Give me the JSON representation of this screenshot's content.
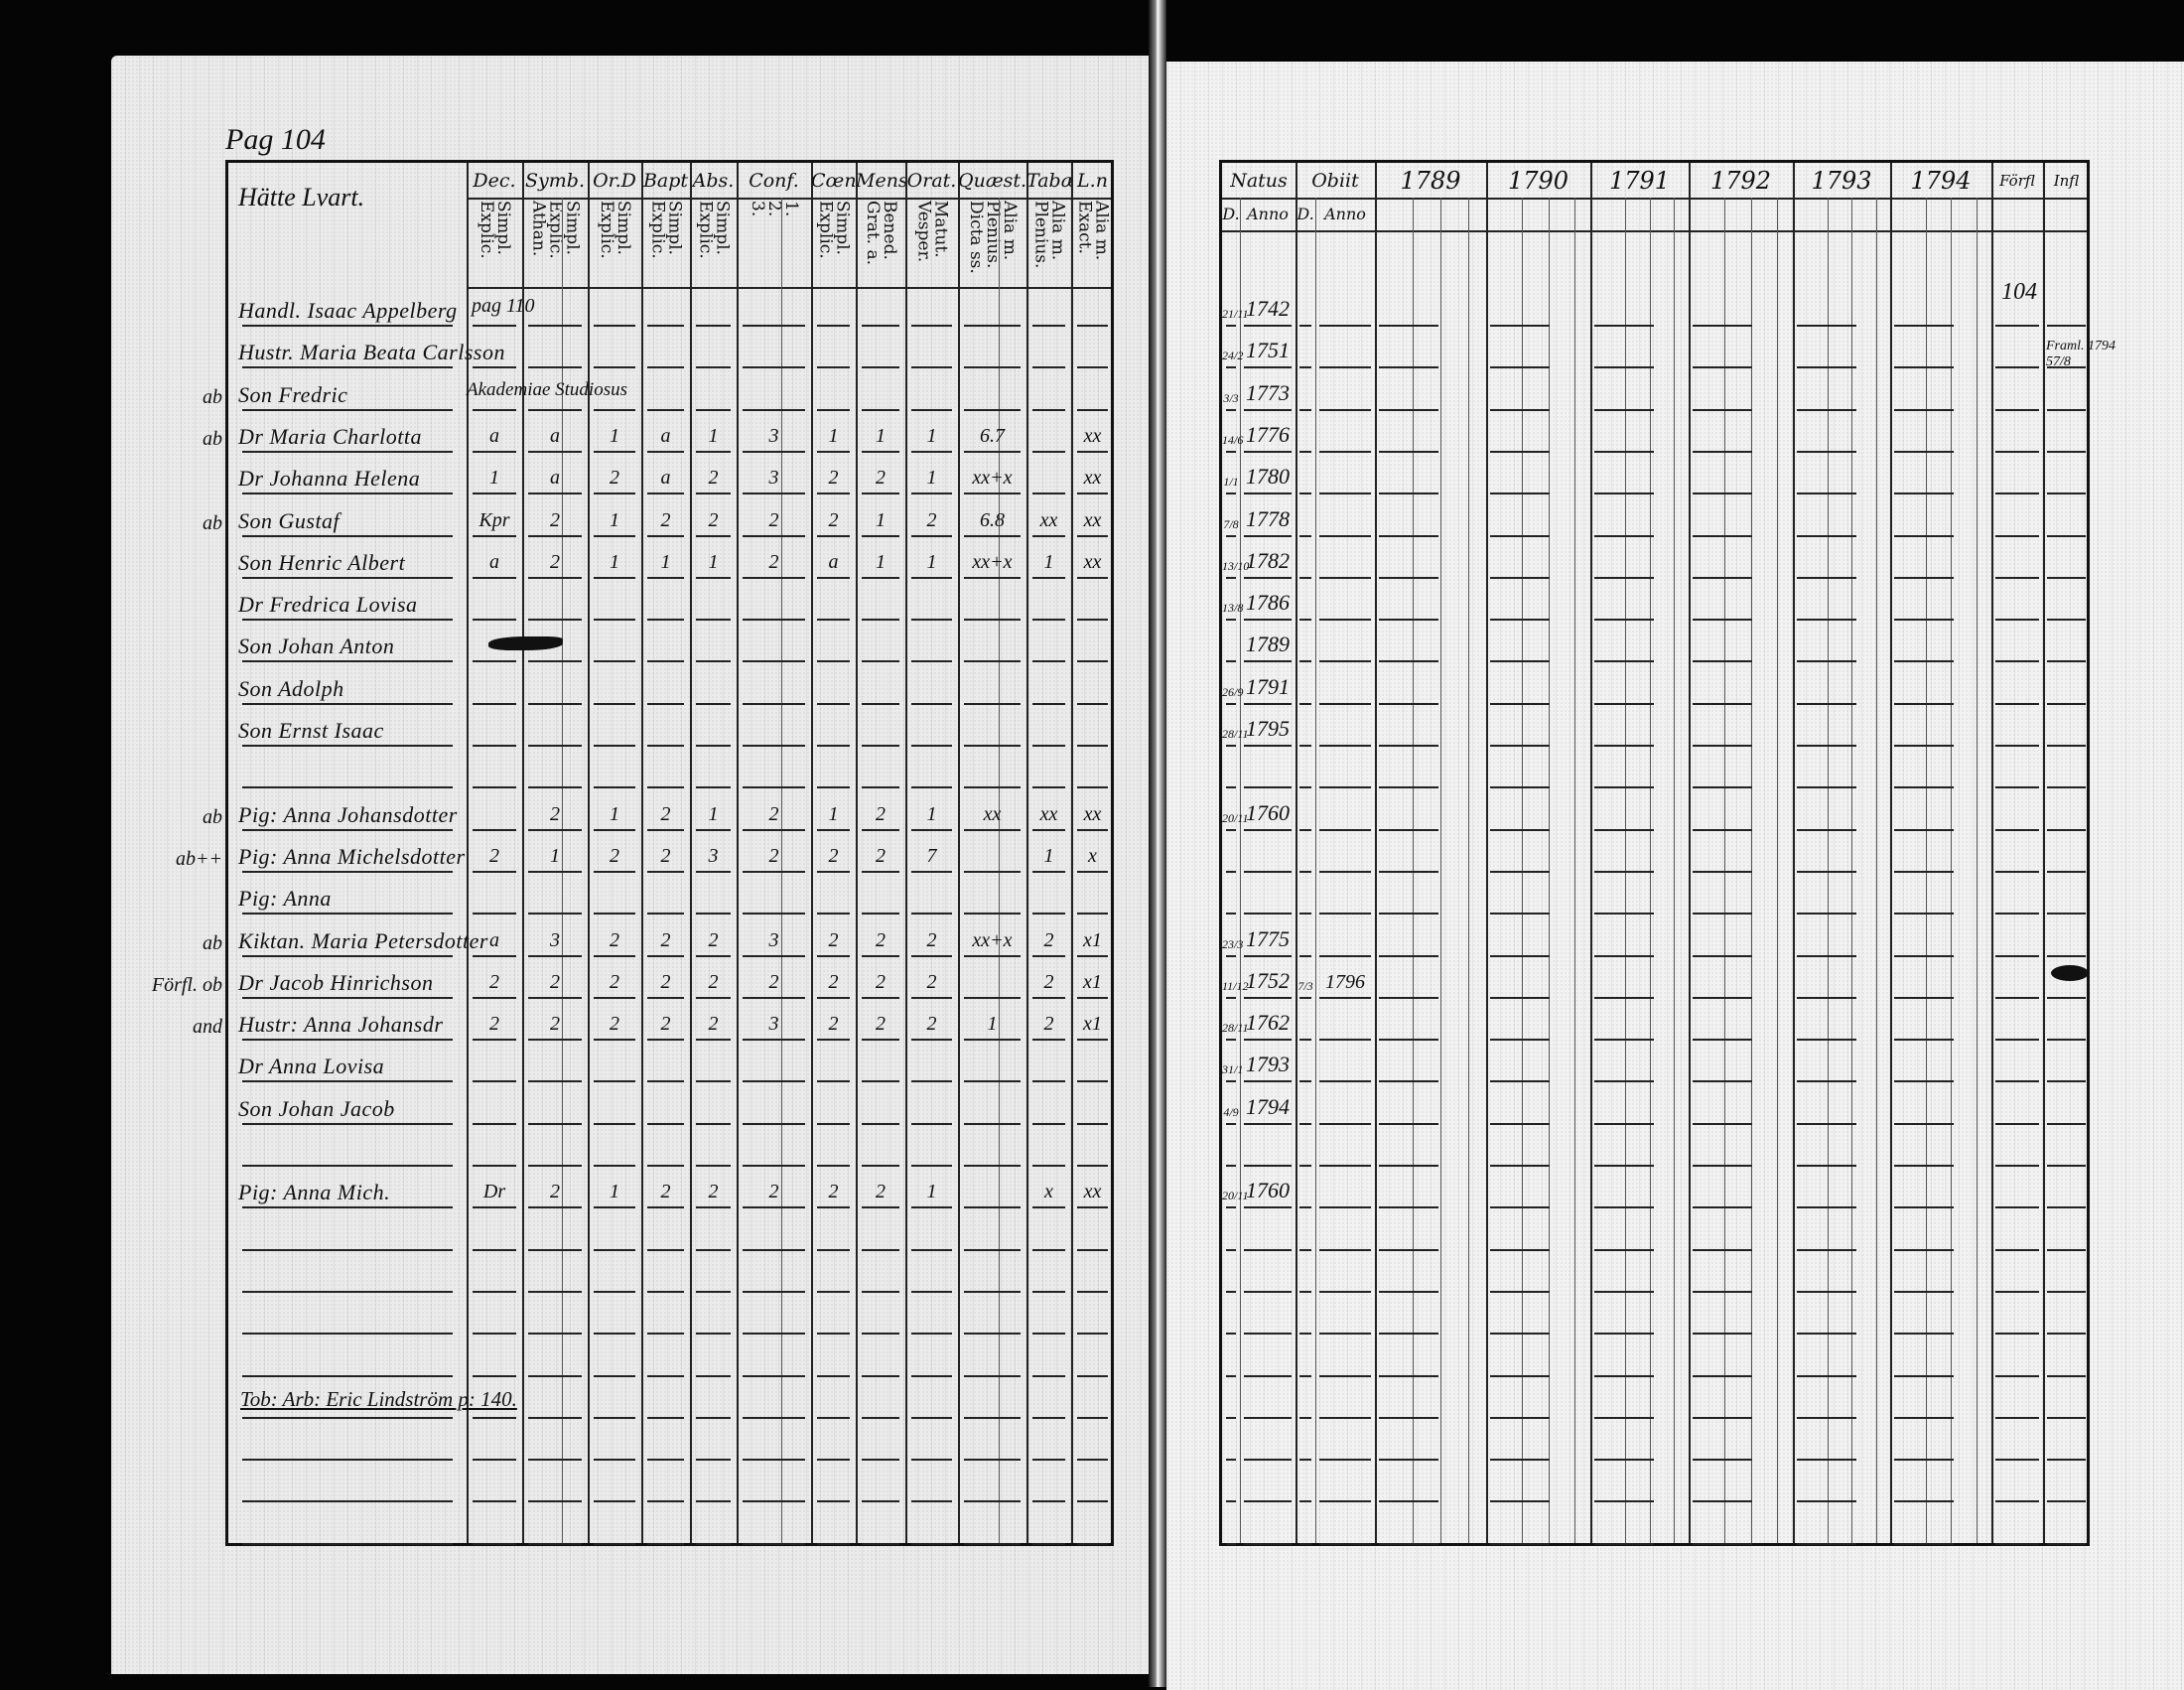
{
  "page_label": "Pag 104",
  "left_table": {
    "name_header": "Hätte Lvart.",
    "columns": [
      {
        "label": "Dec.",
        "sub": [
          "Explic.",
          "Simpl."
        ]
      },
      {
        "label": "Symb.",
        "sub": [
          "Athan.",
          "Explic.",
          "Simpl."
        ]
      },
      {
        "label": "Or.D",
        "sub": [
          "Explic.",
          "Simpl."
        ]
      },
      {
        "label": "Bapt",
        "sub": [
          "Explic.",
          "Simpl."
        ]
      },
      {
        "label": "Abs.",
        "sub": [
          "Explic.",
          "Simpl."
        ]
      },
      {
        "label": "Conf.",
        "sub": [
          "3.",
          "2.",
          "1."
        ]
      },
      {
        "label": "Cœn.D",
        "sub": [
          "Explic.",
          "Simpl."
        ]
      },
      {
        "label": "Mens.",
        "sub": [
          "Grat. a.",
          "Bened."
        ]
      },
      {
        "label": "Orat.",
        "sub": [
          "Vesper.",
          "Matut."
        ]
      },
      {
        "label": "Quæst.",
        "sub": [
          "Dicta ss.",
          "Plenius.",
          "Alia m."
        ]
      },
      {
        "label": "Tabæ",
        "sub": [
          "Plenius.",
          "Alia m."
        ]
      },
      {
        "label": "L.n",
        "sub": [
          "Exact.",
          "Alia m."
        ]
      }
    ],
    "notes": {
      "pag_ref": "pag 110",
      "studiosus": "Akademiae Studiosus",
      "footer": "Tob: Arb: Eric Lindström p: 140."
    }
  },
  "right_table": {
    "natus": "Natus",
    "obiit": "Obiit",
    "d": "D.",
    "anno": "Anno",
    "years": [
      "1789",
      "1790",
      "1791",
      "1792",
      "1793",
      "1794"
    ],
    "extra_cols": [
      "Förfl",
      "Infl"
    ],
    "notes": {
      "ref": "104",
      "framl": "Framl. 1794 57/8"
    }
  },
  "rows": [
    {
      "name": "Handl. Isaac Appelberg",
      "margin": "",
      "natus_d": "21/11",
      "natus_anno": "1742",
      "obiit_d": "",
      "obiit_anno": "",
      "marks": []
    },
    {
      "name": "Hustr. Maria Beata Carlsson",
      "margin": "",
      "natus_d": "24/2",
      "natus_anno": "1751",
      "obiit_d": "",
      "obiit_anno": "",
      "marks": []
    },
    {
      "name": "Son Fredric",
      "margin": "ab",
      "natus_d": "3/3",
      "natus_anno": "1773",
      "obiit_d": "",
      "obiit_anno": "",
      "marks": []
    },
    {
      "name": "Dr Maria Charlotta",
      "margin": "ab",
      "natus_d": "14/6",
      "natus_anno": "1776",
      "obiit_d": "",
      "obiit_anno": "",
      "marks": [
        "a",
        "a",
        "1",
        "a",
        "1",
        "3",
        "1",
        "1",
        "1",
        "6.7",
        "",
        "xx"
      ]
    },
    {
      "name": "Dr Johanna Helena",
      "margin": "",
      "natus_d": "1/1",
      "natus_anno": "1780",
      "obiit_d": "",
      "obiit_anno": "",
      "marks": [
        "1",
        "a",
        "2",
        "a",
        "2",
        "3",
        "2",
        "2",
        "1",
        "xx+x",
        "",
        "xx"
      ]
    },
    {
      "name": "Son Gustaf",
      "margin": "ab",
      "natus_d": "7/8",
      "natus_anno": "1778",
      "obiit_d": "",
      "obiit_anno": "",
      "marks": [
        "Kpr",
        "2",
        "1",
        "2",
        "2",
        "2",
        "2",
        "1",
        "2",
        "6.8",
        "xx",
        "xx"
      ]
    },
    {
      "name": "Son Henric Albert",
      "margin": "",
      "natus_d": "13/10",
      "natus_anno": "1782",
      "obiit_d": "",
      "obiit_anno": "",
      "marks": [
        "a",
        "2",
        "1",
        "1",
        "1",
        "2",
        "a",
        "1",
        "1",
        "xx+x",
        "1",
        "xx"
      ]
    },
    {
      "name": "Dr Fredrica Lovisa",
      "margin": "",
      "natus_d": "13/8",
      "natus_anno": "1786",
      "obiit_d": "",
      "obiit_anno": "",
      "marks": []
    },
    {
      "name": "Son Johan Anton",
      "margin": "",
      "natus_d": "",
      "natus_anno": "1789",
      "obiit_d": "",
      "obiit_anno": "",
      "marks": []
    },
    {
      "name": "Son Adolph",
      "margin": "",
      "natus_d": "26/9",
      "natus_anno": "1791",
      "obiit_d": "",
      "obiit_anno": "",
      "marks": []
    },
    {
      "name": "Son Ernst Isaac",
      "margin": "",
      "natus_d": "28/11",
      "natus_anno": "1795",
      "obiit_d": "",
      "obiit_anno": "",
      "marks": []
    },
    {
      "name": "",
      "margin": "",
      "natus_d": "",
      "natus_anno": "",
      "obiit_d": "",
      "obiit_anno": "",
      "marks": []
    },
    {
      "name": "Pig: Anna Johansdotter",
      "margin": "ab",
      "natus_d": "20/11",
      "natus_anno": "1760",
      "obiit_d": "",
      "obiit_anno": "",
      "marks": [
        "",
        "2",
        "1",
        "2",
        "1",
        "2",
        "1",
        "2",
        "1",
        "xx",
        "xx",
        "xx"
      ]
    },
    {
      "name": "Pig: Anna Michelsdotter",
      "margin": "ab++",
      "natus_d": "",
      "natus_anno": "",
      "obiit_d": "",
      "obiit_anno": "",
      "marks": [
        "2",
        "1",
        "2",
        "2",
        "3",
        "2",
        "2",
        "2",
        "7",
        "",
        "1",
        "x"
      ]
    },
    {
      "name": "Pig: Anna",
      "margin": "",
      "natus_d": "",
      "natus_anno": "",
      "obiit_d": "",
      "obiit_anno": "",
      "marks": []
    },
    {
      "name": "Kiktan. Maria Petersdotter",
      "margin": "ab",
      "natus_d": "23/3",
      "natus_anno": "1775",
      "obiit_d": "",
      "obiit_anno": "",
      "marks": [
        "a",
        "3",
        "2",
        "2",
        "2",
        "3",
        "2",
        "2",
        "2",
        "xx+x",
        "2",
        "x1"
      ]
    },
    {
      "name": "Dr Jacob Hinrichson",
      "margin": "Förfl. ob",
      "natus_d": "11/12",
      "natus_anno": "1752",
      "obiit_d": "7/3",
      "obiit_anno": "1796",
      "marks": [
        "2",
        "2",
        "2",
        "2",
        "2",
        "2",
        "2",
        "2",
        "2",
        "",
        "2",
        "x1"
      ]
    },
    {
      "name": "Hustr: Anna Johansdr",
      "margin": "and",
      "natus_d": "28/11",
      "natus_anno": "1762",
      "obiit_d": "",
      "obiit_anno": "",
      "marks": [
        "2",
        "2",
        "2",
        "2",
        "2",
        "3",
        "2",
        "2",
        "2",
        "1",
        "2",
        "x1"
      ]
    },
    {
      "name": "Dr Anna Lovisa",
      "margin": "",
      "natus_d": "31/1",
      "natus_anno": "1793",
      "obiit_d": "",
      "obiit_anno": "",
      "marks": []
    },
    {
      "name": "Son Johan Jacob",
      "margin": "",
      "natus_d": "4/9",
      "natus_anno": "1794",
      "obiit_d": "",
      "obiit_anno": "",
      "marks": []
    },
    {
      "name": "",
      "margin": "",
      "natus_d": "",
      "natus_anno": "",
      "obiit_d": "",
      "obiit_anno": "",
      "marks": []
    },
    {
      "name": "Pig: Anna Mich.",
      "margin": "",
      "natus_d": "20/11",
      "natus_anno": "1760",
      "obiit_d": "",
      "obiit_anno": "",
      "marks": [
        "Dr",
        "2",
        "1",
        "2",
        "2",
        "2",
        "2",
        "2",
        "1",
        "",
        "x",
        "xx"
      ]
    }
  ]
}
